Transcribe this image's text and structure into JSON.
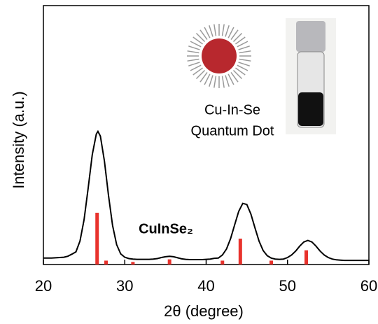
{
  "chart_data": {
    "type": "line",
    "x_label": "2θ (degree)",
    "y_label": "Intensity (a.u.)",
    "annotations": [
      "Cu-In-Se",
      "Quantum Dot"
    ],
    "xlim": [
      20,
      60
    ],
    "xticks": [
      20,
      30,
      40,
      50,
      60
    ],
    "ylim": [
      0,
      100
    ],
    "color": "#000000",
    "x": [
      20,
      20.5,
      21,
      21.5,
      22,
      22.5,
      23,
      23.5,
      24,
      24.5,
      25,
      25.5,
      26,
      26.5,
      26.7,
      27,
      27.5,
      28,
      28.5,
      29,
      29.5,
      30,
      30.5,
      31,
      31.5,
      32,
      32.5,
      33,
      33.5,
      34,
      34.5,
      35,
      35.5,
      36,
      36.5,
      37,
      37.5,
      38,
      38.5,
      39,
      39.5,
      40,
      40.5,
      41,
      41.5,
      42,
      42.5,
      43,
      43.5,
      44,
      44.5,
      45,
      45.5,
      46,
      46.5,
      47,
      47.5,
      48,
      48.5,
      49,
      49.5,
      50,
      50.5,
      51,
      51.5,
      52,
      52.5,
      53,
      53.5,
      54,
      54.5,
      55,
      55.5,
      56,
      56.5,
      57,
      57.5,
      58,
      58.5,
      59,
      59.5,
      60
    ],
    "values": [
      2.5,
      2.5,
      2.5,
      2.6,
      2.7,
      2.8,
      3.2,
      4,
      4.9,
      9.1,
      17.3,
      29.4,
      42.4,
      50.4,
      51.4,
      49.6,
      39.9,
      26.7,
      15.1,
      7.7,
      4.1,
      2.8,
      2.3,
      2.1,
      2,
      2,
      2,
      2,
      2.1,
      2.3,
      2.7,
      3,
      3.2,
      3,
      2.6,
      2.2,
      2,
      1.9,
      1.9,
      1.9,
      1.9,
      2,
      2.1,
      2.4,
      2.5,
      3.7,
      6,
      10,
      15.3,
      20.5,
      23.6,
      23.2,
      19.5,
      14.1,
      9,
      5.4,
      3.4,
      2.5,
      2.1,
      2,
      2.1,
      2.7,
      3.7,
      5.2,
      7.1,
      8.7,
      9.3,
      8.7,
      7.1,
      5.2,
      3.7,
      2.7,
      2.1,
      1.8,
      1.7,
      1.6,
      1.6,
      1.6,
      1.6,
      1.6,
      1.6,
      1.6
    ],
    "reference_peaks": {
      "label": "CuInSe₂",
      "color": "#e8322c",
      "x": [
        26.6,
        27.7,
        31,
        35.5,
        42,
        44.2,
        48,
        52.3
      ],
      "values": [
        20,
        1.5,
        1,
        2,
        1.5,
        10,
        1.5,
        5.5
      ]
    }
  }
}
